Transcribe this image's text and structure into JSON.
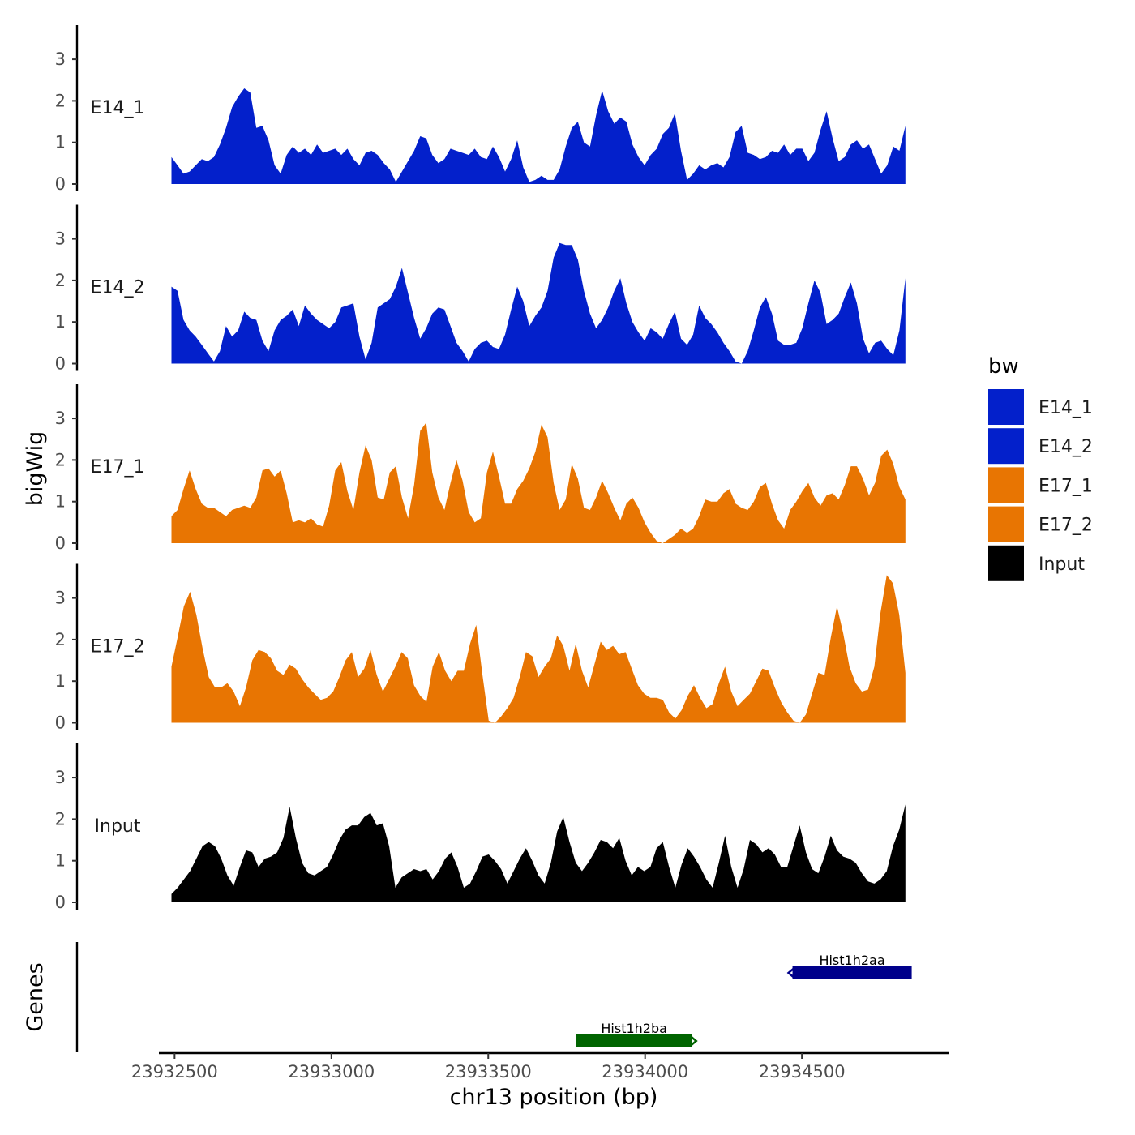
{
  "chart_data": {
    "type": "area",
    "ylabel": "bigWig",
    "xlabel": "chr13 position (bp)",
    "genes_label": "Genes",
    "xlim": [
      23932450,
      23934970
    ],
    "data_range": [
      23932490,
      23934830
    ],
    "ylim": [
      0,
      3.85
    ],
    "y_ticks": [
      "0",
      "1",
      "2",
      "3"
    ],
    "x_ticks": [
      {
        "value": 23932500,
        "label": "23932500"
      },
      {
        "value": 23933000,
        "label": "23933000"
      },
      {
        "value": 23933500,
        "label": "23933500"
      },
      {
        "value": 23934000,
        "label": "23934000"
      },
      {
        "value": 23934500,
        "label": "23934500"
      }
    ],
    "legend": {
      "title": "bw",
      "entries": [
        {
          "name": "E14_1",
          "color": "#0320CB"
        },
        {
          "name": "E14_2",
          "color": "#0320CB"
        },
        {
          "name": "E17_1",
          "color": "#E87502"
        },
        {
          "name": "E17_2",
          "color": "#E87502"
        },
        {
          "name": "Input",
          "color": "#000000"
        }
      ]
    },
    "tracks": [
      {
        "name": "E14_1",
        "color": "#0320CB",
        "values": [
          0.65,
          0.45,
          0.25,
          0.3,
          0.45,
          0.6,
          0.55,
          0.65,
          0.95,
          1.35,
          1.85,
          2.1,
          2.3,
          2.2,
          1.35,
          1.4,
          1.05,
          0.45,
          0.25,
          0.7,
          0.9,
          0.75,
          0.85,
          0.7,
          0.95,
          0.75,
          0.8,
          0.85,
          0.7,
          0.85,
          0.6,
          0.45,
          0.75,
          0.8,
          0.7,
          0.5,
          0.35,
          0.05,
          0.3,
          0.55,
          0.8,
          1.15,
          1.1,
          0.7,
          0.5,
          0.6,
          0.85,
          0.8,
          0.75,
          0.7,
          0.85,
          0.65,
          0.6,
          0.9,
          0.65,
          0.3,
          0.6,
          1.05,
          0.4,
          0.05,
          0.1,
          0.2,
          0.1,
          0.1,
          0.35,
          0.9,
          1.35,
          1.5,
          1.0,
          0.9,
          1.65,
          2.25,
          1.75,
          1.45,
          1.6,
          1.5,
          0.95,
          0.65,
          0.45,
          0.7,
          0.85,
          1.2,
          1.35,
          1.7,
          0.8,
          0.1,
          0.25,
          0.45,
          0.35,
          0.45,
          0.5,
          0.4,
          0.65,
          1.25,
          1.4,
          0.75,
          0.7,
          0.6,
          0.65,
          0.8,
          0.75,
          0.95,
          0.7,
          0.85,
          0.85,
          0.55,
          0.75,
          1.3,
          1.75,
          1.1,
          0.55,
          0.65,
          0.95,
          1.05,
          0.85,
          0.95,
          0.6,
          0.25,
          0.45,
          0.9,
          0.8,
          1.4
        ]
      },
      {
        "name": "E14_2",
        "color": "#0320CB",
        "values": [
          1.85,
          1.75,
          1.05,
          0.8,
          0.65,
          0.45,
          0.25,
          0.05,
          0.3,
          0.9,
          0.65,
          0.8,
          1.25,
          1.1,
          1.05,
          0.55,
          0.3,
          0.8,
          1.05,
          1.15,
          1.3,
          0.9,
          1.4,
          1.2,
          1.05,
          0.95,
          0.85,
          1.0,
          1.35,
          1.4,
          1.45,
          0.65,
          0.1,
          0.5,
          1.35,
          1.45,
          1.55,
          1.85,
          2.3,
          1.7,
          1.1,
          0.6,
          0.85,
          1.2,
          1.35,
          1.3,
          0.9,
          0.5,
          0.3,
          0.05,
          0.35,
          0.5,
          0.55,
          0.4,
          0.35,
          0.7,
          1.3,
          1.85,
          1.5,
          0.9,
          1.15,
          1.35,
          1.75,
          2.55,
          2.9,
          2.85,
          2.85,
          2.5,
          1.75,
          1.2,
          0.85,
          1.05,
          1.35,
          1.75,
          2.05,
          1.45,
          1.0,
          0.75,
          0.55,
          0.85,
          0.75,
          0.6,
          0.95,
          1.25,
          0.6,
          0.45,
          0.7,
          1.4,
          1.1,
          0.95,
          0.75,
          0.5,
          0.3,
          0.05,
          0.0,
          0.3,
          0.8,
          1.35,
          1.6,
          1.2,
          0.55,
          0.45,
          0.45,
          0.5,
          0.85,
          1.45,
          2.0,
          1.7,
          0.95,
          1.05,
          1.2,
          1.6,
          1.95,
          1.45,
          0.6,
          0.25,
          0.5,
          0.55,
          0.35,
          0.2,
          0.8,
          2.05
        ]
      },
      {
        "name": "E17_1",
        "color": "#E87502",
        "values": [
          0.65,
          0.8,
          1.3,
          1.75,
          1.3,
          0.95,
          0.85,
          0.85,
          0.75,
          0.65,
          0.8,
          0.85,
          0.9,
          0.85,
          1.1,
          1.75,
          1.8,
          1.6,
          1.75,
          1.2,
          0.5,
          0.55,
          0.5,
          0.6,
          0.45,
          0.4,
          0.9,
          1.75,
          1.95,
          1.25,
          0.8,
          1.7,
          2.35,
          2.0,
          1.1,
          1.05,
          1.7,
          1.85,
          1.1,
          0.6,
          1.4,
          2.7,
          2.9,
          1.7,
          1.1,
          0.8,
          1.45,
          2.0,
          1.5,
          0.75,
          0.5,
          0.6,
          1.7,
          2.2,
          1.6,
          0.95,
          0.95,
          1.3,
          1.5,
          1.8,
          2.2,
          2.85,
          2.55,
          1.45,
          0.8,
          1.05,
          1.9,
          1.55,
          0.85,
          0.8,
          1.1,
          1.5,
          1.2,
          0.85,
          0.55,
          0.95,
          1.1,
          0.85,
          0.5,
          0.25,
          0.05,
          0.0,
          0.1,
          0.2,
          0.35,
          0.25,
          0.35,
          0.65,
          1.05,
          1.0,
          1.0,
          1.2,
          1.3,
          0.95,
          0.85,
          0.8,
          1.0,
          1.35,
          1.45,
          0.95,
          0.55,
          0.35,
          0.8,
          1.0,
          1.25,
          1.45,
          1.1,
          0.9,
          1.15,
          1.2,
          1.05,
          1.4,
          1.85,
          1.85,
          1.55,
          1.15,
          1.45,
          2.1,
          2.25,
          1.9,
          1.35,
          1.05
        ]
      },
      {
        "name": "E17_2",
        "color": "#E87502",
        "values": [
          1.35,
          2.05,
          2.8,
          3.15,
          2.6,
          1.8,
          1.1,
          0.85,
          0.85,
          0.95,
          0.75,
          0.4,
          0.85,
          1.5,
          1.75,
          1.7,
          1.55,
          1.25,
          1.15,
          1.4,
          1.3,
          1.05,
          0.85,
          0.7,
          0.55,
          0.6,
          0.75,
          1.1,
          1.5,
          1.7,
          1.1,
          1.3,
          1.75,
          1.15,
          0.75,
          1.05,
          1.35,
          1.7,
          1.55,
          0.9,
          0.65,
          0.5,
          1.35,
          1.7,
          1.25,
          1.0,
          1.25,
          1.25,
          1.9,
          2.35,
          1.15,
          0.05,
          0.0,
          0.15,
          0.35,
          0.6,
          1.1,
          1.7,
          1.6,
          1.1,
          1.35,
          1.55,
          2.1,
          1.85,
          1.25,
          1.9,
          1.25,
          0.85,
          1.4,
          1.95,
          1.75,
          1.85,
          1.65,
          1.7,
          1.3,
          0.9,
          0.7,
          0.6,
          0.6,
          0.55,
          0.25,
          0.1,
          0.3,
          0.65,
          0.9,
          0.6,
          0.35,
          0.45,
          0.95,
          1.35,
          0.75,
          0.4,
          0.55,
          0.7,
          1.0,
          1.3,
          1.25,
          0.85,
          0.5,
          0.25,
          0.05,
          0.0,
          0.2,
          0.7,
          1.2,
          1.15,
          2.05,
          2.8,
          2.15,
          1.35,
          0.95,
          0.75,
          0.8,
          1.35,
          2.65,
          3.55,
          3.35,
          2.6,
          1.2
        ]
      },
      {
        "name": "Input",
        "color": "#000000",
        "values": [
          0.2,
          0.35,
          0.55,
          0.75,
          1.05,
          1.35,
          1.45,
          1.35,
          1.05,
          0.65,
          0.4,
          0.85,
          1.25,
          1.2,
          0.85,
          1.05,
          1.1,
          1.2,
          1.55,
          2.3,
          1.55,
          0.95,
          0.7,
          0.65,
          0.75,
          0.85,
          1.15,
          1.5,
          1.75,
          1.85,
          1.85,
          2.05,
          2.15,
          1.85,
          1.9,
          1.35,
          0.35,
          0.6,
          0.7,
          0.8,
          0.75,
          0.8,
          0.55,
          0.75,
          1.05,
          1.2,
          0.85,
          0.35,
          0.45,
          0.75,
          1.1,
          1.15,
          1.0,
          0.8,
          0.45,
          0.75,
          1.05,
          1.3,
          1.0,
          0.65,
          0.45,
          0.95,
          1.7,
          2.05,
          1.45,
          0.95,
          0.75,
          0.95,
          1.2,
          1.5,
          1.45,
          1.3,
          1.55,
          1.0,
          0.65,
          0.85,
          0.75,
          0.85,
          1.3,
          1.45,
          0.85,
          0.35,
          0.9,
          1.3,
          1.1,
          0.85,
          0.55,
          0.35,
          0.95,
          1.6,
          0.85,
          0.35,
          0.8,
          1.5,
          1.4,
          1.2,
          1.3,
          1.15,
          0.85,
          0.85,
          1.35,
          1.85,
          1.2,
          0.8,
          0.7,
          1.1,
          1.6,
          1.25,
          1.1,
          1.05,
          0.95,
          0.7,
          0.5,
          0.45,
          0.55,
          0.75,
          1.35,
          1.75,
          2.35
        ]
      }
    ],
    "genes": [
      {
        "name": "Hist1h2aa",
        "start": 23934470,
        "end": 23934850,
        "strand": "-",
        "row": 1,
        "color": "#00008B"
      },
      {
        "name": "Hist1h2ba",
        "start": 23933780,
        "end": 23934150,
        "strand": "+",
        "row": 2,
        "color": "#006400"
      }
    ]
  }
}
